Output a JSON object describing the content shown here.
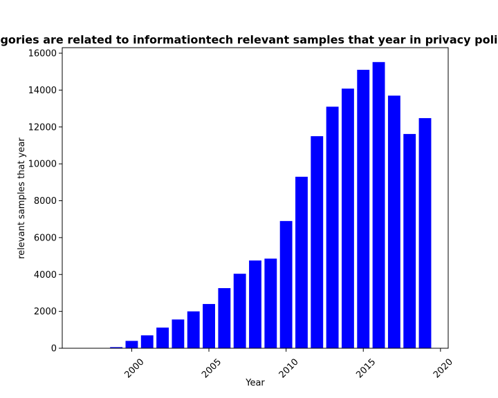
{
  "chart_data": {
    "type": "bar",
    "title": "gories are related to informationtech relevant samples that year in privacy poli",
    "xlabel": "Year",
    "ylabel": "relevant samples that year",
    "x": [
      1999,
      2000,
      2001,
      2002,
      2003,
      2004,
      2005,
      2006,
      2007,
      2008,
      2009,
      2010,
      2011,
      2012,
      2013,
      2014,
      2015,
      2016,
      2017,
      2018,
      2019
    ],
    "values": [
      60,
      400,
      700,
      1120,
      1560,
      2000,
      2400,
      3260,
      4040,
      4760,
      4860,
      6900,
      9300,
      11500,
      13100,
      14080,
      15100,
      15520,
      13700,
      11620,
      12480
    ],
    "xlim": [
      1995.5,
      2020.5
    ],
    "ylim": [
      0,
      16300
    ],
    "xticks": [
      2000,
      2005,
      2010,
      2015,
      2020
    ],
    "xtick_labels": [
      "2000",
      "2005",
      "2010",
      "2015",
      "2020"
    ],
    "yticks": [
      0,
      2000,
      4000,
      6000,
      8000,
      10000,
      12000,
      14000,
      16000
    ],
    "ytick_labels": [
      "0",
      "2000",
      "4000",
      "6000",
      "8000",
      "10000",
      "12000",
      "14000",
      "16000"
    ],
    "bar_color": "#0000ff",
    "grid": false,
    "legend": "none"
  }
}
